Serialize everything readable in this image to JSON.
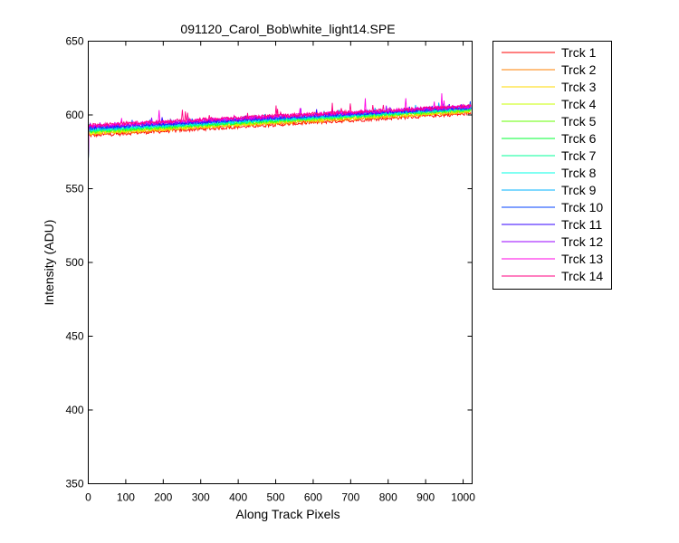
{
  "chart_data": {
    "type": "line",
    "title": "091120_Carol_Bob\\white_light14.SPE",
    "xlabel": "Along Track Pixels",
    "ylabel": "Intensity (ADU)",
    "xlim": [
      0,
      1024
    ],
    "ylim": [
      350,
      650
    ],
    "xticks": [
      0,
      100,
      200,
      300,
      400,
      500,
      600,
      700,
      800,
      900,
      1000
    ],
    "yticks": [
      350,
      400,
      450,
      500,
      550,
      600,
      650
    ],
    "grid": false,
    "legend_position": "outside-right",
    "x": [
      0,
      1024
    ],
    "series": [
      {
        "name": "Trck 1",
        "color": "#ff0000",
        "start": 570,
        "values": [
          586,
          601
        ]
      },
      {
        "name": "Trck 2",
        "color": "#ff8000",
        "start": 569,
        "values": [
          587,
          602
        ]
      },
      {
        "name": "Trck 3",
        "color": "#ffd800",
        "start": 568,
        "values": [
          587.5,
          602.5
        ]
      },
      {
        "name": "Trck 4",
        "color": "#c8ff00",
        "start": 568,
        "values": [
          588,
          603
        ]
      },
      {
        "name": "Trck 5",
        "color": "#66ff00",
        "start": 567,
        "values": [
          588.5,
          603.5
        ]
      },
      {
        "name": "Trck 6",
        "color": "#00ff33",
        "start": 567,
        "values": [
          589,
          604
        ]
      },
      {
        "name": "Trck 7",
        "color": "#00ff99",
        "start": 567,
        "values": [
          589.5,
          604
        ]
      },
      {
        "name": "Trck 8",
        "color": "#00ffe6",
        "start": 567,
        "values": [
          590,
          604.5
        ]
      },
      {
        "name": "Trck 9",
        "color": "#00b3ff",
        "start": 567,
        "values": [
          590.5,
          605
        ]
      },
      {
        "name": "Trck 10",
        "color": "#0040ff",
        "start": 567,
        "values": [
          591,
          605
        ]
      },
      {
        "name": "Trck 11",
        "color": "#3300ff",
        "start": 567,
        "values": [
          591.5,
          605.5
        ]
      },
      {
        "name": "Trck 12",
        "color": "#9900ff",
        "start": 567,
        "values": [
          592,
          605.5
        ]
      },
      {
        "name": "Trck 13",
        "color": "#ff00e6",
        "start": 567,
        "values": [
          592.5,
          606
        ]
      },
      {
        "name": "Trck 14",
        "color": "#ff0080",
        "start": 568,
        "values": [
          593,
          606
        ]
      }
    ]
  }
}
